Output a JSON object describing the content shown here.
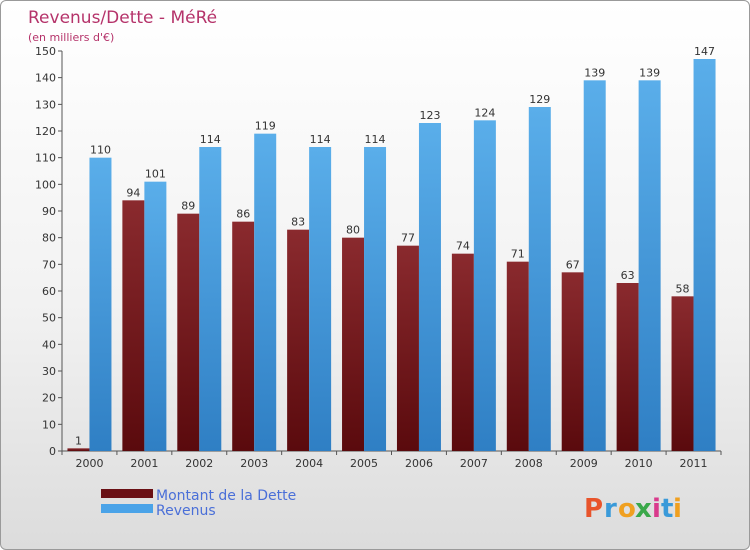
{
  "chart_data": {
    "type": "bar",
    "title": "Revenus/Dette - MéRé",
    "subtitle": "(en milliers d'€)",
    "categories": [
      "2000",
      "2001",
      "2002",
      "2003",
      "2004",
      "2005",
      "2006",
      "2007",
      "2008",
      "2009",
      "2010",
      "2011"
    ],
    "series": [
      {
        "name": "Montant de la Dette",
        "color": "#7a1b1f",
        "values": [
          1,
          94,
          89,
          86,
          83,
          80,
          77,
          74,
          71,
          67,
          63,
          58
        ]
      },
      {
        "name": "Revenus",
        "color": "#4aa3e8",
        "values": [
          110,
          101,
          114,
          119,
          114,
          114,
          123,
          124,
          129,
          139,
          139,
          147
        ]
      }
    ],
    "ylim": [
      0,
      150
    ],
    "yticks": [
      0,
      10,
      20,
      30,
      40,
      50,
      60,
      70,
      80,
      90,
      100,
      110,
      120,
      130,
      140,
      150
    ],
    "grid": false,
    "legend_position": "bottom-left"
  },
  "logo": {
    "letters": [
      "P",
      "r",
      "o",
      "x",
      "i",
      "t",
      "i"
    ],
    "colors": [
      "#e8542b",
      "#3a9ad9",
      "#f0a020",
      "#3aa84a",
      "#d93a8c",
      "#3a9ad9",
      "#f0a020"
    ]
  }
}
